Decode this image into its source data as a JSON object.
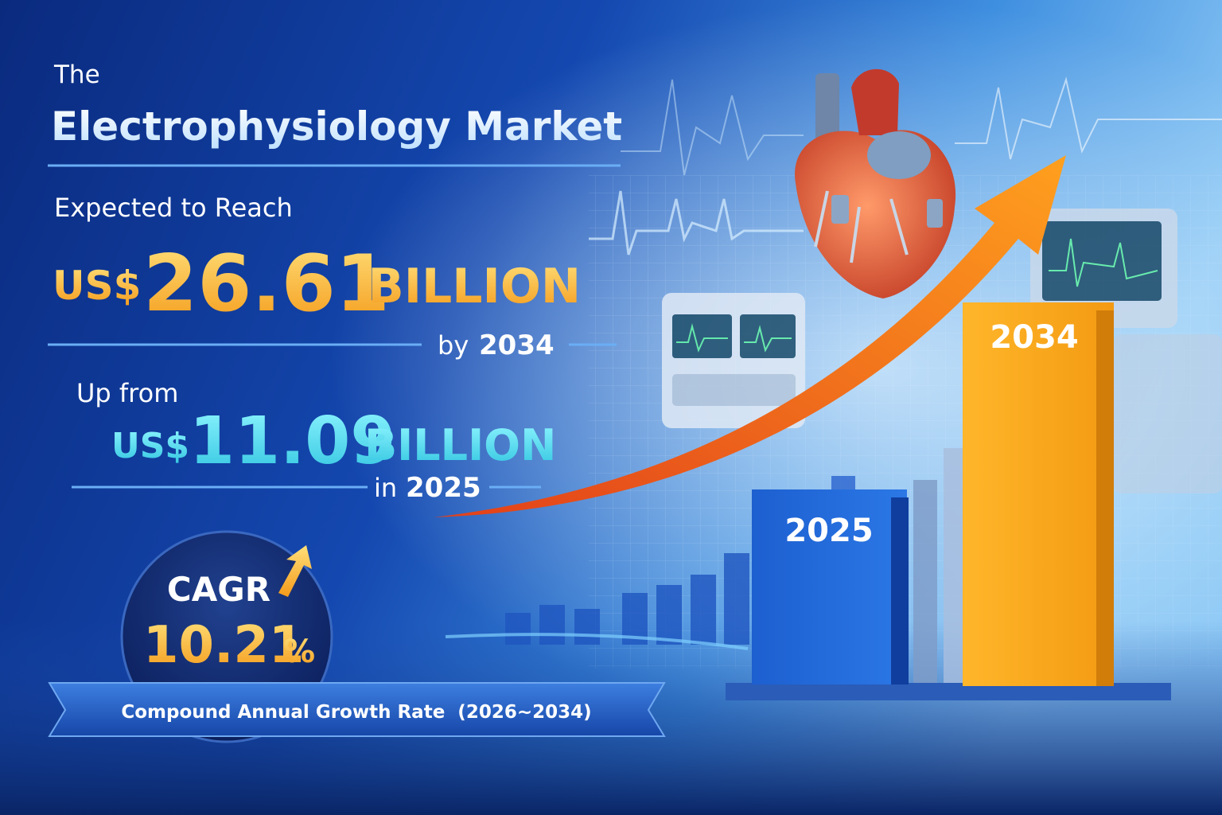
{
  "header": {
    "pre_title": "The",
    "title": "Electrophysiology Market"
  },
  "forecast": {
    "lead": "Expected to Reach",
    "currency": "US$",
    "amount": "26.61",
    "unit": "BILLION",
    "period_prefix": "by",
    "period_year": "2034"
  },
  "base": {
    "lead": "Up from",
    "currency": "US$",
    "amount": "11.09",
    "unit": "BILLION",
    "period_prefix": "in",
    "period_year": "2025"
  },
  "cagr": {
    "label": "CAGR",
    "value": "10.21",
    "unit": "%",
    "caption": "Compound Annual Growth Rate  (2026~2034)"
  },
  "bars": {
    "labels": [
      "2025",
      "2034"
    ]
  }
}
